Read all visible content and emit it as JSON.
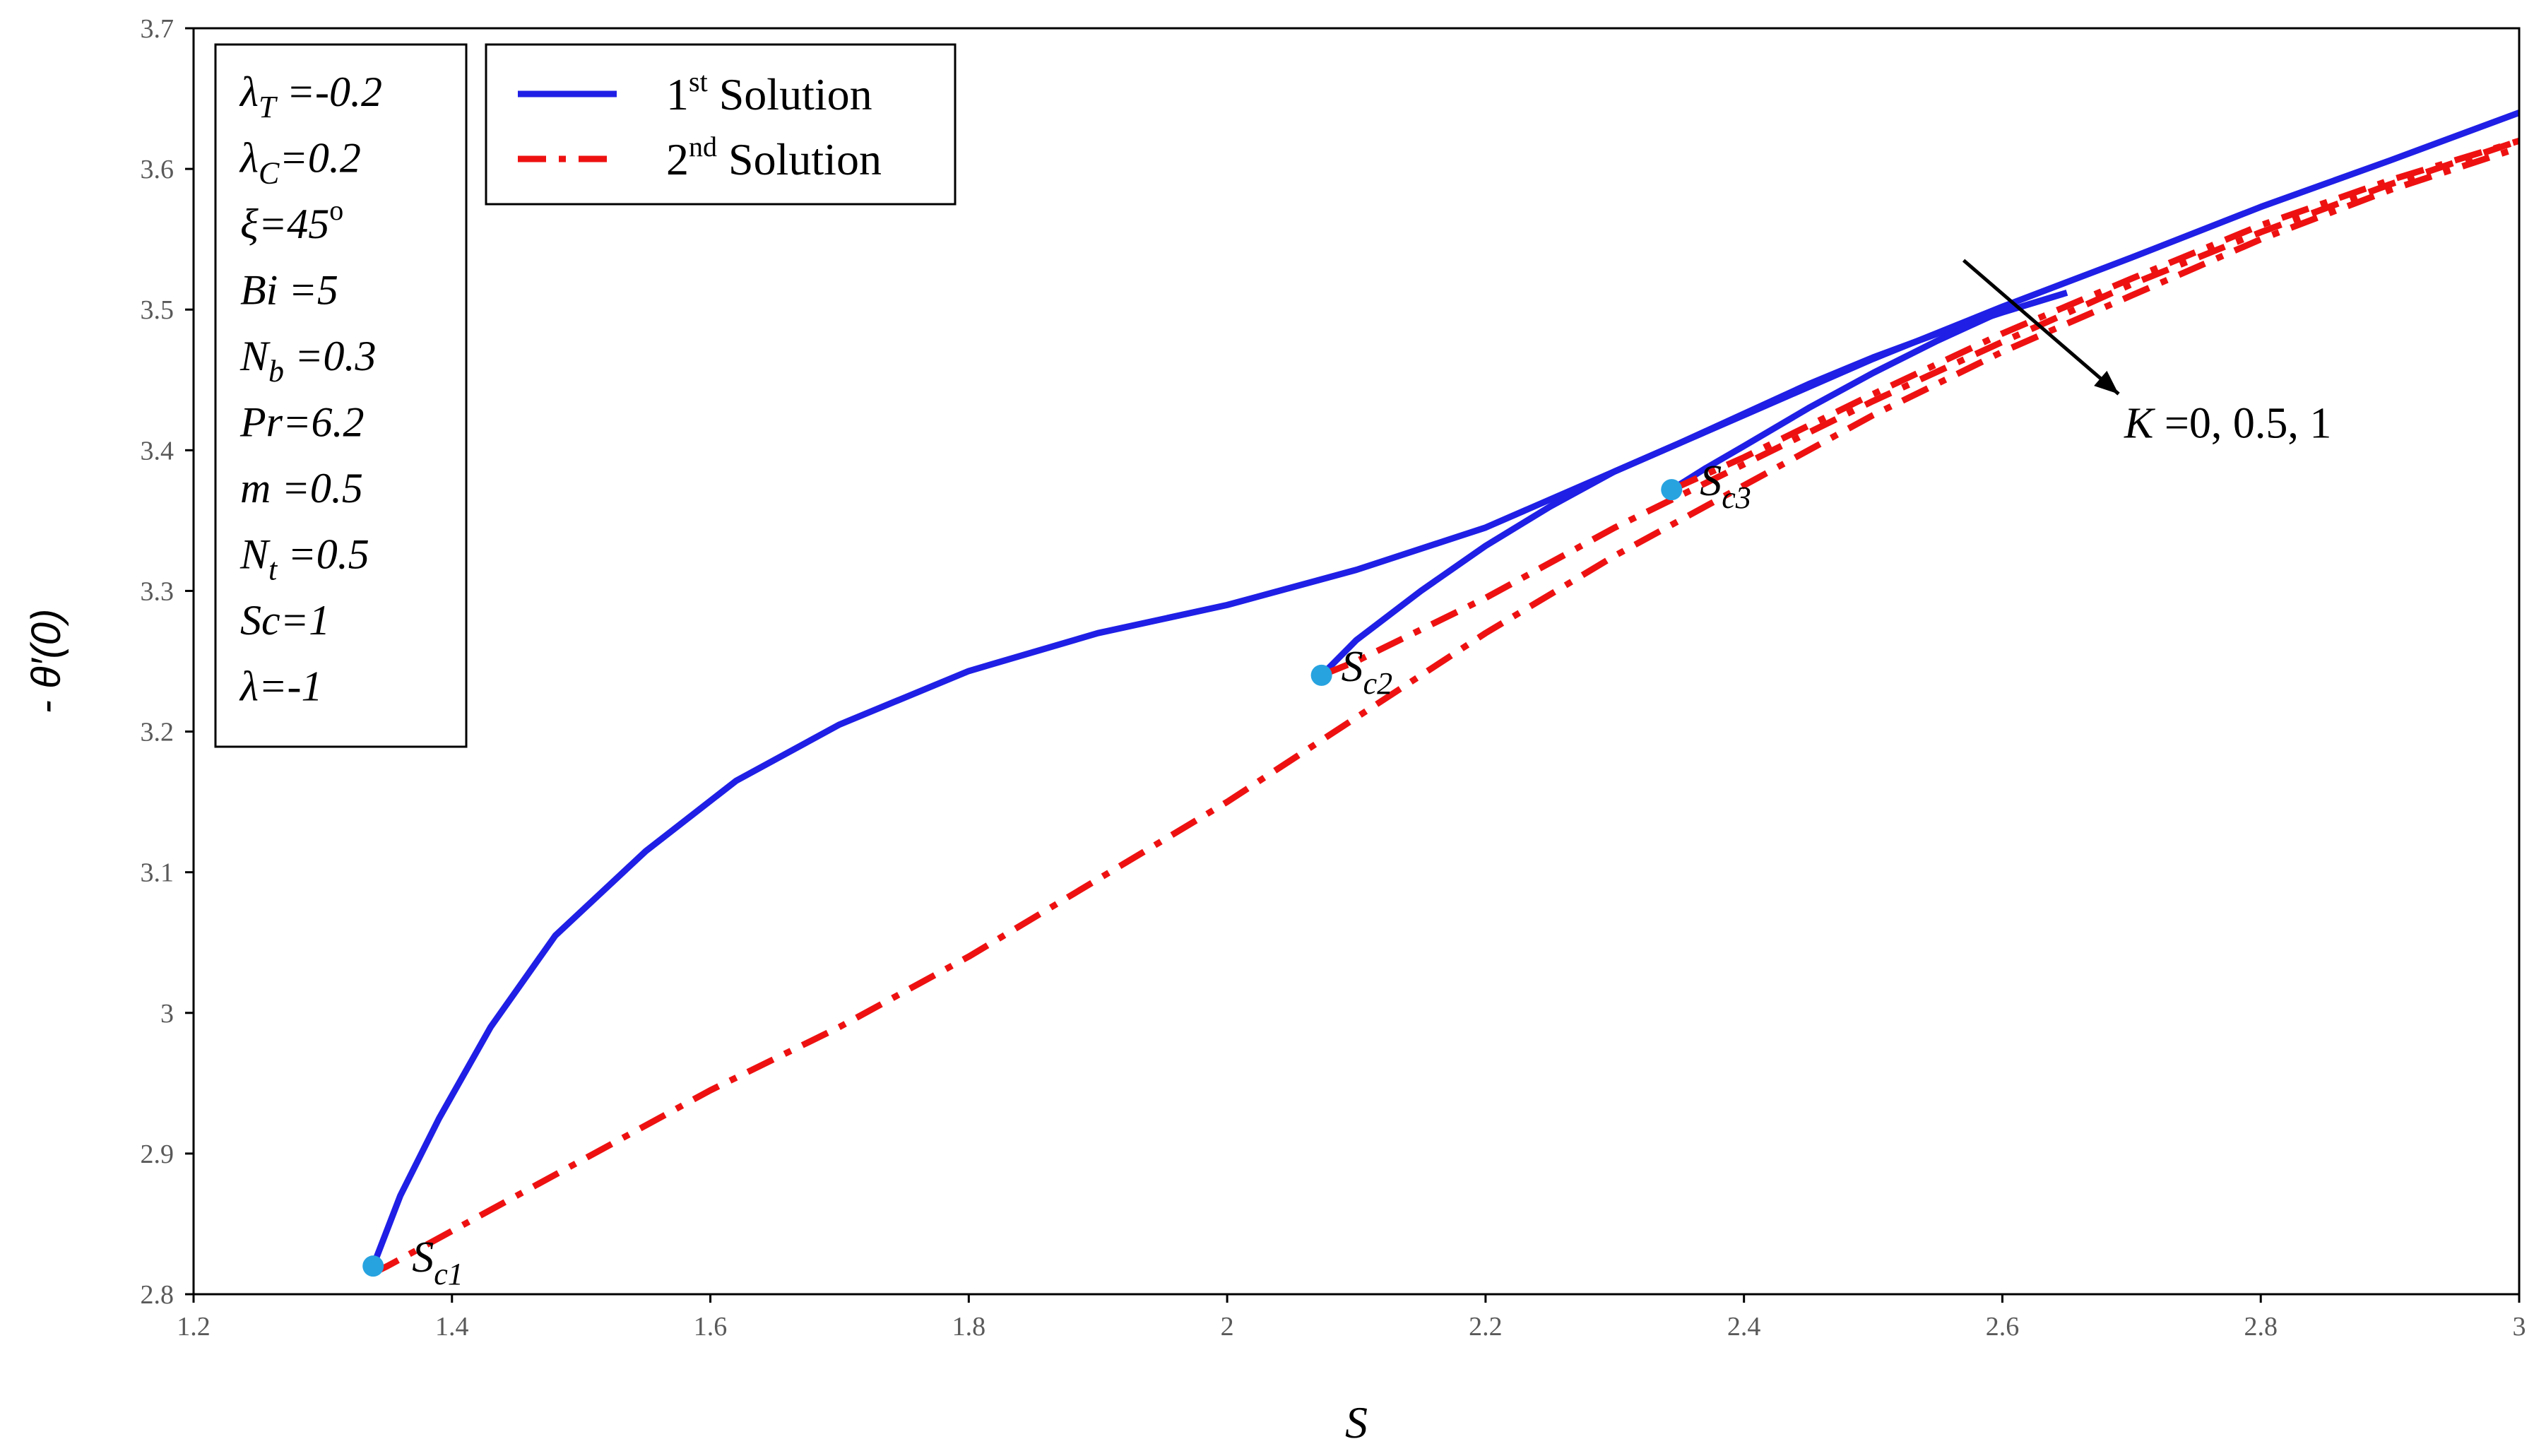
{
  "chart_data": {
    "type": "line",
    "xlabel": "S",
    "ylabel": "- θ′(0)",
    "xlim": [
      1.2,
      3.0
    ],
    "ylim": [
      2.8,
      3.7
    ],
    "x_ticks": [
      "1.2",
      "1.4",
      "1.6",
      "1.8",
      "2",
      "2.2",
      "2.4",
      "2.6",
      "2.8",
      "3"
    ],
    "y_ticks": [
      "2.8",
      "2.9",
      "3",
      "3.1",
      "3.2",
      "3.3",
      "3.4",
      "3.5",
      "3.6",
      "3.7"
    ],
    "grid": false,
    "legend": {
      "placement": "top-left",
      "entries": [
        {
          "base": "1",
          "sup": "st",
          "text": " Solution",
          "color": "#1f1fe6",
          "style": "solid"
        },
        {
          "base": "2",
          "sup": "nd",
          "text": " Solution",
          "color": "#ee1111",
          "style": "dash-dot"
        }
      ]
    },
    "parameters": [
      {
        "sym": "λ",
        "sub": "T",
        "val": " =-0.2"
      },
      {
        "sym": "λ",
        "sub": "C",
        "val": "=0.2"
      },
      {
        "sym": "ξ",
        "sub": "",
        "val": "=45",
        "sup": "o"
      },
      {
        "sym": "Bi",
        "sub": "",
        "val": " =5"
      },
      {
        "sym": "N",
        "sub": "b",
        "val": " =0.3"
      },
      {
        "sym": "Pr",
        "sub": "",
        "val": "=6.2"
      },
      {
        "sym": "m",
        "sub": "",
        "val": " =0.5"
      },
      {
        "sym": "N",
        "sub": "t",
        "val": " =0.5"
      },
      {
        "sym": "Sc",
        "sub": "",
        "val": "=1"
      },
      {
        "sym": "λ",
        "sub": "",
        "val": "=-1"
      }
    ],
    "arrow_annotation": {
      "label_sym": "K",
      "label_text": " =0, 0.5, 1",
      "from": [
        2.57,
        3.535
      ],
      "to": [
        2.69,
        3.44
      ]
    },
    "critical_points": [
      {
        "label": "S",
        "sub": "c1",
        "x": 1.339,
        "y": 2.82
      },
      {
        "label": "S",
        "sub": "c2",
        "x": 2.073,
        "y": 3.24
      },
      {
        "label": "S",
        "sub": "c3",
        "x": 2.344,
        "y": 3.372
      }
    ],
    "series": [
      {
        "solution": "1st",
        "K": "0",
        "style": "solid",
        "color": "#1f1fe6",
        "x": [
          1.339,
          1.36,
          1.39,
          1.43,
          1.48,
          1.55,
          1.62,
          1.7,
          1.8,
          1.9,
          2.0,
          2.1,
          2.2,
          2.3,
          2.4,
          2.5,
          2.6,
          2.7,
          2.8,
          2.9,
          3.0
        ],
        "y": [
          2.82,
          2.87,
          2.925,
          2.99,
          3.055,
          3.115,
          3.165,
          3.205,
          3.243,
          3.27,
          3.29,
          3.315,
          3.345,
          3.385,
          3.425,
          3.465,
          3.502,
          3.537,
          3.573,
          3.606,
          3.64
        ]
      },
      {
        "solution": "1st",
        "K": "0.5",
        "style": "solid",
        "color": "#1f1fe6",
        "x": [
          2.073,
          2.1,
          2.15,
          2.2,
          2.25,
          2.3,
          2.35,
          2.4,
          2.45,
          2.5,
          2.55,
          2.6,
          2.65
        ],
        "y": [
          3.24,
          3.265,
          3.3,
          3.332,
          3.36,
          3.385,
          3.405,
          3.426,
          3.447,
          3.466,
          3.483,
          3.498,
          3.512
        ]
      },
      {
        "solution": "1st",
        "K": "1",
        "style": "solid",
        "color": "#1f1fe6",
        "x": [
          2.344,
          2.37,
          2.4,
          2.45,
          2.5,
          2.55,
          2.6
        ],
        "y": [
          3.372,
          3.387,
          3.403,
          3.43,
          3.455,
          3.478,
          3.499
        ]
      },
      {
        "solution": "2nd",
        "K": "0",
        "style": "dash-dot",
        "color": "#ee1111",
        "x": [
          1.339,
          1.35,
          1.4,
          1.5,
          1.6,
          1.7,
          1.8,
          1.9,
          2.0,
          2.1,
          2.2,
          2.3,
          2.4,
          2.5,
          2.6,
          2.7,
          2.8,
          2.9,
          3.0
        ],
        "y": [
          2.815,
          2.82,
          2.845,
          2.895,
          2.945,
          2.99,
          3.04,
          3.095,
          3.15,
          3.21,
          3.27,
          3.325,
          3.375,
          3.425,
          3.47,
          3.51,
          3.55,
          3.585,
          3.615
        ]
      },
      {
        "solution": "2nd",
        "K": "0.5",
        "style": "dash-dot",
        "color": "#ee1111",
        "x": [
          2.073,
          2.1,
          2.2,
          2.3,
          2.4,
          2.5,
          2.6,
          2.7,
          2.8,
          2.9,
          3.0
        ],
        "y": [
          3.24,
          3.25,
          3.295,
          3.345,
          3.39,
          3.435,
          3.477,
          3.518,
          3.555,
          3.589,
          3.62
        ]
      },
      {
        "solution": "2nd",
        "K": "1",
        "style": "dash-dot",
        "color": "#ee1111",
        "x": [
          2.344,
          2.4,
          2.5,
          2.6,
          2.7,
          2.8,
          2.9,
          3.0
        ],
        "y": [
          3.372,
          3.395,
          3.44,
          3.483,
          3.522,
          3.56,
          3.592,
          3.62
        ]
      }
    ]
  }
}
